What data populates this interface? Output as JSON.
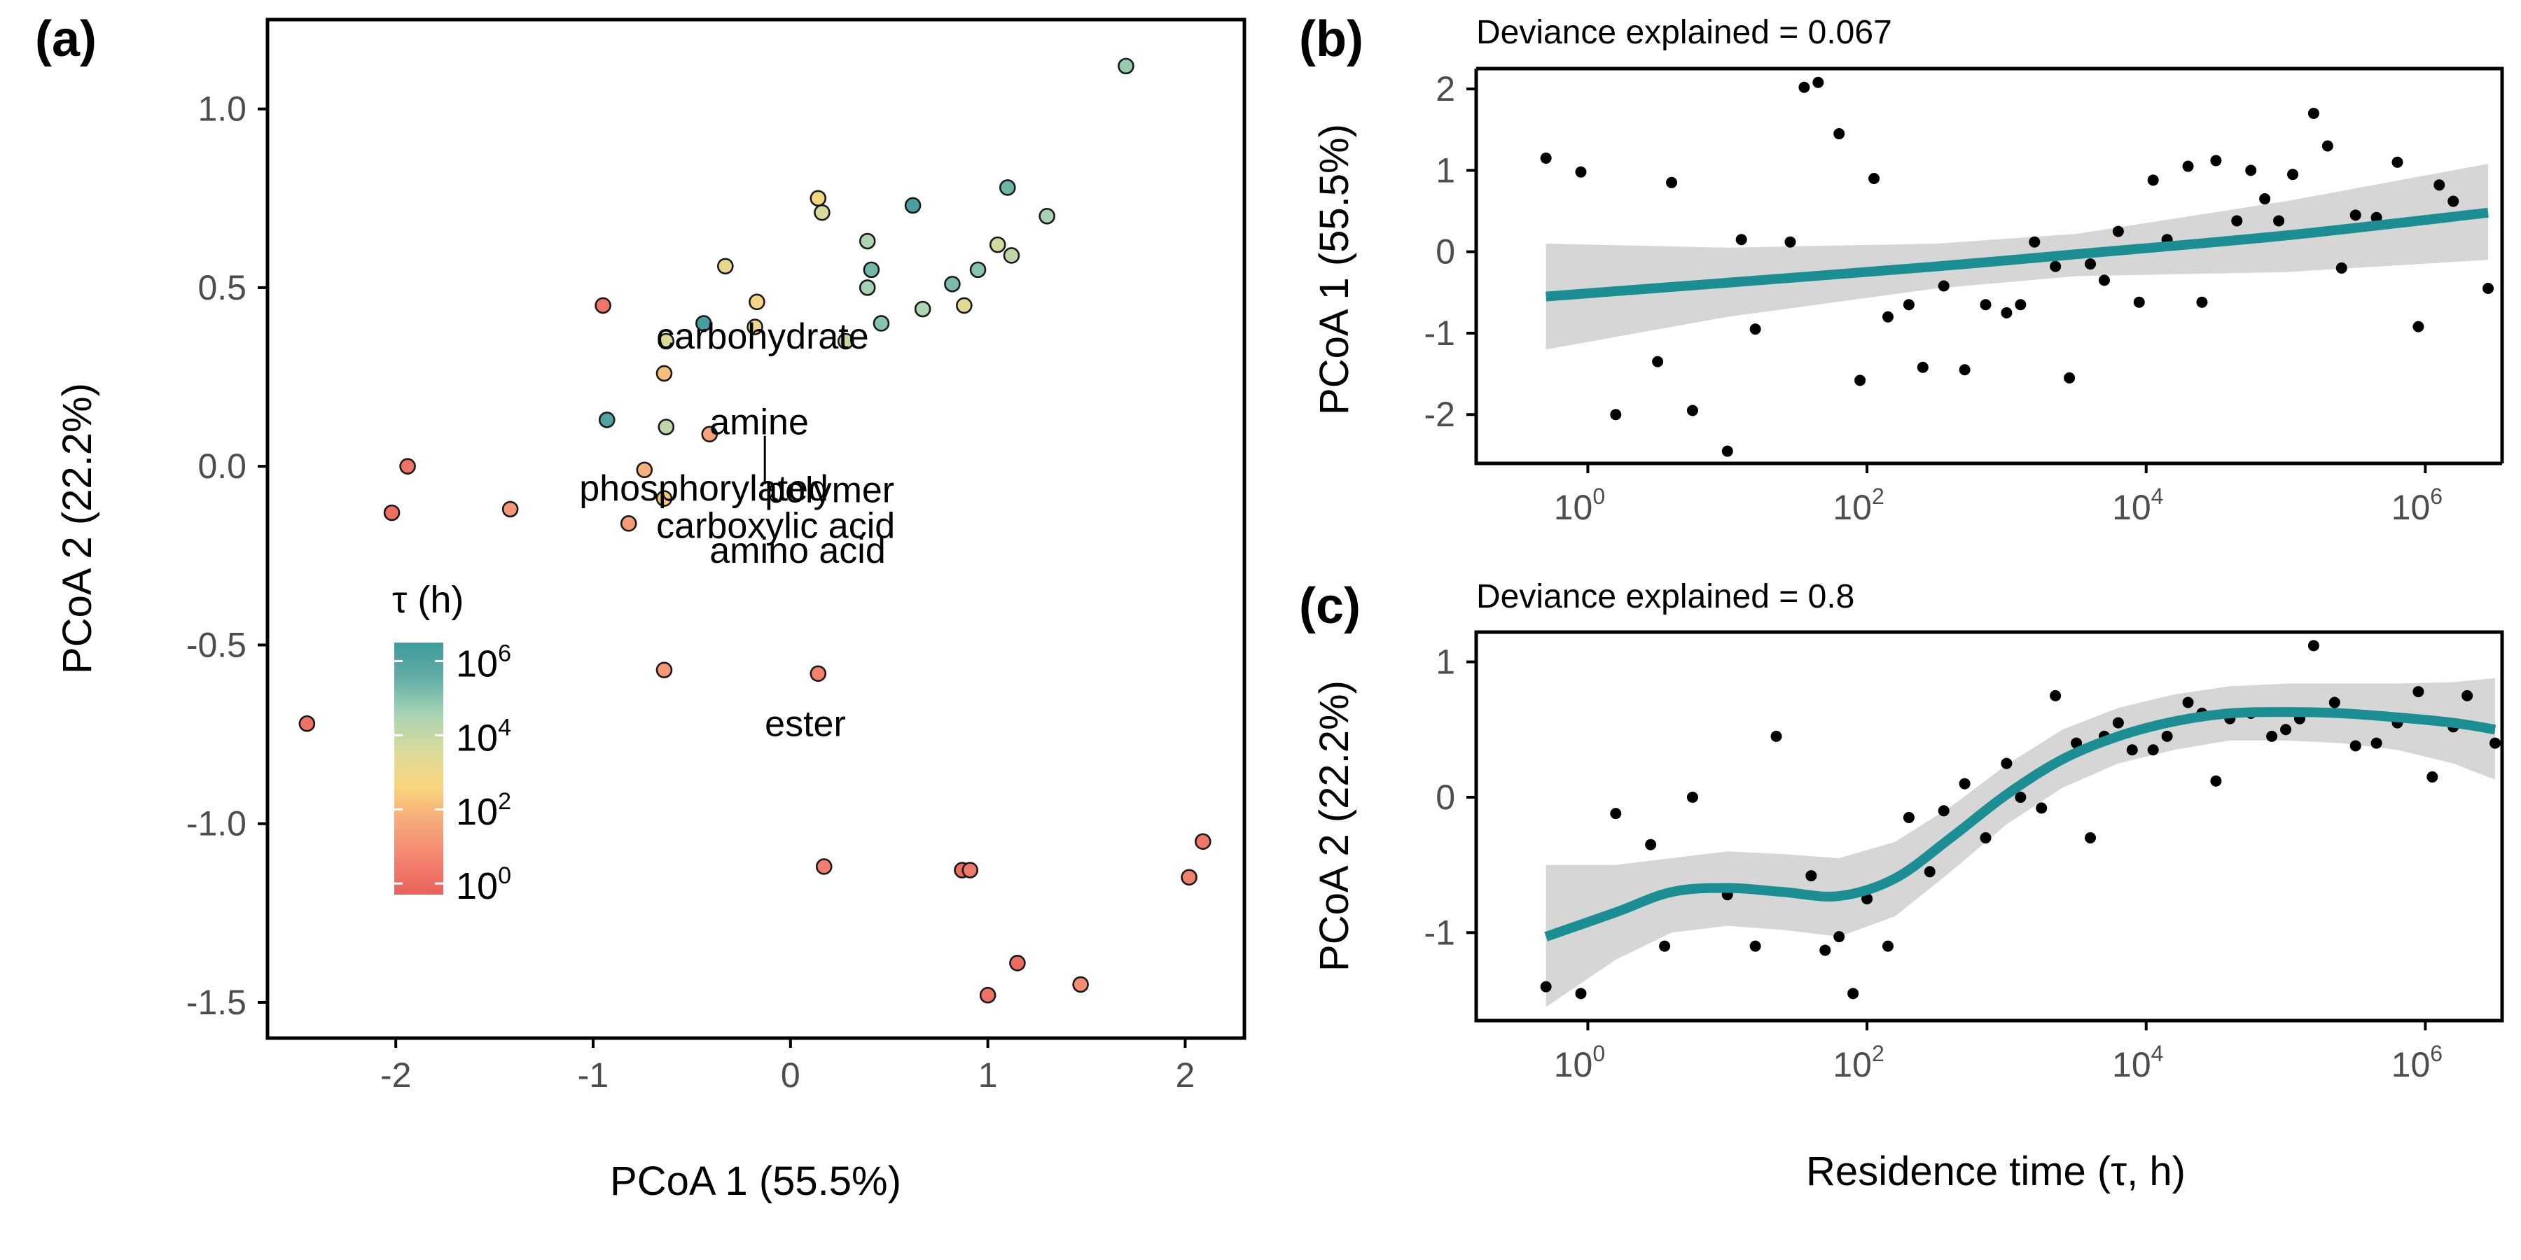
{
  "chart_data": [
    {
      "panel": "(a)",
      "type": "scatter",
      "xlabel": "PCoA 1 (55.5%)",
      "ylabel": "PCoA 2 (22.2%)",
      "xlim": [
        -2.65,
        2.3
      ],
      "ylim": [
        -1.6,
        1.25
      ],
      "xticks": [
        -2,
        -1,
        0,
        1,
        2
      ],
      "xtick_labels": [
        "-2",
        "-1",
        "0",
        "1",
        "2"
      ],
      "yticks": [
        -1.5,
        -1.0,
        -0.5,
        0.0,
        0.5,
        1.0
      ],
      "ytick_labels": [
        "-1.5",
        "-1.0",
        "-0.5",
        "0.0",
        "0.5",
        "1.0"
      ],
      "color_scale": {
        "title": "τ (h)",
        "log10_range": [
          -0.3,
          6.5
        ],
        "stops": [
          "#E8615C",
          "#F3836F",
          "#F6A97B",
          "#F9D57E",
          "#DADB9A",
          "#A7D4B4",
          "#63AEA6",
          "#3E9A9C"
        ],
        "ticks": [
          {
            "base": "10",
            "exp": "0",
            "log10": 0
          },
          {
            "base": "10",
            "exp": "2",
            "log10": 2
          },
          {
            "base": "10",
            "exp": "4",
            "log10": 4
          },
          {
            "base": "10",
            "exp": "6",
            "log10": 6
          }
        ]
      },
      "points": [
        {
          "x": 1.7,
          "y": 1.12,
          "log_tau": 4.8
        },
        {
          "x": 1.1,
          "y": 0.78,
          "log_tau": 5.4
        },
        {
          "x": 1.3,
          "y": 0.7,
          "log_tau": 4.6
        },
        {
          "x": 0.62,
          "y": 0.73,
          "log_tau": 6.2
        },
        {
          "x": 0.14,
          "y": 0.75,
          "log_tau": 2.8
        },
        {
          "x": 0.16,
          "y": 0.71,
          "log_tau": 3.6
        },
        {
          "x": 0.39,
          "y": 0.63,
          "log_tau": 4.4
        },
        {
          "x": 1.05,
          "y": 0.62,
          "log_tau": 3.8
        },
        {
          "x": 1.12,
          "y": 0.59,
          "log_tau": 4.1
        },
        {
          "x": 0.41,
          "y": 0.55,
          "log_tau": 5.3
        },
        {
          "x": 0.95,
          "y": 0.55,
          "log_tau": 5.0
        },
        {
          "x": -0.33,
          "y": 0.56,
          "log_tau": 3.2
        },
        {
          "x": 0.82,
          "y": 0.51,
          "log_tau": 5.2
        },
        {
          "x": 0.39,
          "y": 0.5,
          "log_tau": 4.6
        },
        {
          "x": 0.67,
          "y": 0.44,
          "log_tau": 4.4
        },
        {
          "x": 0.88,
          "y": 0.45,
          "log_tau": 3.4
        },
        {
          "x": -0.17,
          "y": 0.46,
          "log_tau": 2.8
        },
        {
          "x": -0.95,
          "y": 0.45,
          "log_tau": 0.3
        },
        {
          "x": -0.44,
          "y": 0.4,
          "log_tau": 6.3
        },
        {
          "x": -0.18,
          "y": 0.39,
          "log_tau": 3.1
        },
        {
          "x": 0.46,
          "y": 0.4,
          "log_tau": 5.0
        },
        {
          "x": -0.63,
          "y": 0.35,
          "log_tau": 3.5
        },
        {
          "x": 0.28,
          "y": 0.35,
          "log_tau": 4.0
        },
        {
          "x": -0.64,
          "y": 0.26,
          "log_tau": 2.1
        },
        {
          "x": -0.93,
          "y": 0.13,
          "log_tau": 6.0
        },
        {
          "x": -0.63,
          "y": 0.11,
          "log_tau": 4.1
        },
        {
          "x": -0.41,
          "y": 0.09,
          "log_tau": 1.5
        },
        {
          "x": -1.94,
          "y": 0.0,
          "log_tau": 0.2
        },
        {
          "x": -0.74,
          "y": -0.01,
          "log_tau": 1.8
        },
        {
          "x": -2.02,
          "y": -0.13,
          "log_tau": 0.1
        },
        {
          "x": -1.42,
          "y": -0.12,
          "log_tau": 1.2
        },
        {
          "x": -0.64,
          "y": -0.09,
          "log_tau": 2.3
        },
        {
          "x": -0.82,
          "y": -0.16,
          "log_tau": 1.3
        },
        {
          "x": -0.64,
          "y": -0.57,
          "log_tau": 1.2
        },
        {
          "x": 0.14,
          "y": -0.58,
          "log_tau": 0.6
        },
        {
          "x": -2.45,
          "y": -0.72,
          "log_tau": 0.2
        },
        {
          "x": 2.09,
          "y": -1.05,
          "log_tau": 0.3
        },
        {
          "x": 0.17,
          "y": -1.12,
          "log_tau": 0.5
        },
        {
          "x": 0.87,
          "y": -1.13,
          "log_tau": 0.1
        },
        {
          "x": 0.91,
          "y": -1.13,
          "log_tau": 0.4
        },
        {
          "x": 2.02,
          "y": -1.15,
          "log_tau": 0.6
        },
        {
          "x": 1.15,
          "y": -1.39,
          "log_tau": 0.0
        },
        {
          "x": 1.47,
          "y": -1.45,
          "log_tau": 0.9
        },
        {
          "x": 1.0,
          "y": -1.48,
          "log_tau": 0.2
        }
      ],
      "annotations": [
        {
          "text": "carbohydrate",
          "x": -0.68,
          "y": 0.365,
          "anchor": "start"
        },
        {
          "text": "amine",
          "x": -0.41,
          "y": 0.125,
          "anchor": "start"
        },
        {
          "text": "phosphorylated",
          "x": -1.07,
          "y": -0.06,
          "anchor": "start"
        },
        {
          "text": "polymer",
          "x": -0.13,
          "y": -0.065,
          "anchor": "start"
        },
        {
          "text": "carboxylic acid",
          "x": -0.68,
          "y": -0.165,
          "anchor": "start"
        },
        {
          "text": "amino acid",
          "x": -0.41,
          "y": -0.235,
          "anchor": "start"
        },
        {
          "text": "ester",
          "x": -0.13,
          "y": -0.72,
          "anchor": "start"
        }
      ],
      "segments": [
        {
          "x1": -0.13,
          "y1": 0.085,
          "x2": -0.13,
          "y2": -0.05
        }
      ]
    },
    {
      "panel": "(b)",
      "type": "scatter",
      "subtitle": "Deviance explained = 0.067",
      "ylabel": "PCoA 1 (55.5%)",
      "x_scale": "log10",
      "xlim_log10": [
        -0.8,
        6.55
      ],
      "ylim": [
        -2.6,
        2.25
      ],
      "xticks": [
        {
          "base": "10",
          "exp": "0",
          "log10": 0
        },
        {
          "base": "10",
          "exp": "2",
          "log10": 2
        },
        {
          "base": "10",
          "exp": "4",
          "log10": 4
        },
        {
          "base": "10",
          "exp": "6",
          "log10": 6
        }
      ],
      "yticks": [
        -2,
        -1,
        0,
        1,
        2
      ],
      "ytick_labels": [
        "-2",
        "-1",
        "0",
        "1",
        "2"
      ],
      "points": [
        {
          "x": -0.3,
          "y": 1.15
        },
        {
          "x": -0.05,
          "y": 0.98
        },
        {
          "x": 0.2,
          "y": -2.0
        },
        {
          "x": 0.5,
          "y": -1.35
        },
        {
          "x": 0.6,
          "y": 0.85
        },
        {
          "x": 0.75,
          "y": -1.95
        },
        {
          "x": 1.0,
          "y": -2.45
        },
        {
          "x": 1.1,
          "y": 0.15
        },
        {
          "x": 1.2,
          "y": -0.95
        },
        {
          "x": 1.45,
          "y": 0.12
        },
        {
          "x": 1.55,
          "y": 2.02
        },
        {
          "x": 1.65,
          "y": 2.08
        },
        {
          "x": 1.8,
          "y": 1.45
        },
        {
          "x": 1.95,
          "y": -1.58
        },
        {
          "x": 2.05,
          "y": 0.9
        },
        {
          "x": 2.15,
          "y": -0.8
        },
        {
          "x": 2.3,
          "y": -0.65
        },
        {
          "x": 2.4,
          "y": -1.42
        },
        {
          "x": 2.55,
          "y": -0.42
        },
        {
          "x": 2.7,
          "y": -1.45
        },
        {
          "x": 2.85,
          "y": -0.65
        },
        {
          "x": 3.0,
          "y": -0.75
        },
        {
          "x": 3.1,
          "y": -0.65
        },
        {
          "x": 3.2,
          "y": 0.12
        },
        {
          "x": 3.35,
          "y": -0.18
        },
        {
          "x": 3.45,
          "y": -1.55
        },
        {
          "x": 3.6,
          "y": -0.15
        },
        {
          "x": 3.7,
          "y": -0.35
        },
        {
          "x": 3.8,
          "y": 0.25
        },
        {
          "x": 3.95,
          "y": -0.62
        },
        {
          "x": 4.05,
          "y": 0.88
        },
        {
          "x": 4.15,
          "y": 0.15
        },
        {
          "x": 4.3,
          "y": 1.05
        },
        {
          "x": 4.4,
          "y": -0.62
        },
        {
          "x": 4.5,
          "y": 1.12
        },
        {
          "x": 4.65,
          "y": 0.38
        },
        {
          "x": 4.75,
          "y": 1.0
        },
        {
          "x": 4.85,
          "y": 0.65
        },
        {
          "x": 4.95,
          "y": 0.38
        },
        {
          "x": 5.05,
          "y": 0.95
        },
        {
          "x": 5.2,
          "y": 1.7
        },
        {
          "x": 5.3,
          "y": 1.3
        },
        {
          "x": 5.4,
          "y": -0.2
        },
        {
          "x": 5.5,
          "y": 0.45
        },
        {
          "x": 5.65,
          "y": 0.42
        },
        {
          "x": 5.8,
          "y": 1.1
        },
        {
          "x": 5.95,
          "y": -0.92
        },
        {
          "x": 6.1,
          "y": 0.82
        },
        {
          "x": 6.2,
          "y": 0.62
        },
        {
          "x": 6.45,
          "y": -0.45
        }
      ],
      "fit": [
        {
          "x": -0.3,
          "y": -0.55,
          "lo": -1.2,
          "hi": 0.1
        },
        {
          "x": 1.0,
          "y": -0.38,
          "lo": -0.8,
          "hi": 0.05
        },
        {
          "x": 2.5,
          "y": -0.18,
          "lo": -0.45,
          "hi": 0.1
        },
        {
          "x": 3.5,
          "y": -0.03,
          "lo": -0.3,
          "hi": 0.22
        },
        {
          "x": 5.0,
          "y": 0.2,
          "lo": -0.25,
          "hi": 0.62
        },
        {
          "x": 6.45,
          "y": 0.48,
          "lo": -0.1,
          "hi": 1.08
        }
      ]
    },
    {
      "panel": "(c)",
      "type": "scatter",
      "subtitle": "Deviance explained = 0.8",
      "ylabel": "PCoA 2 (22.2%)",
      "xlabel": "Residence time (τ, h)",
      "x_scale": "log10",
      "xlim_log10": [
        -0.8,
        6.55
      ],
      "ylim": [
        -1.65,
        1.22
      ],
      "xticks": [
        {
          "base": "10",
          "exp": "0",
          "log10": 0
        },
        {
          "base": "10",
          "exp": "2",
          "log10": 2
        },
        {
          "base": "10",
          "exp": "4",
          "log10": 4
        },
        {
          "base": "10",
          "exp": "6",
          "log10": 6
        }
      ],
      "yticks": [
        -1,
        0,
        1
      ],
      "ytick_labels": [
        "-1",
        "0",
        "1"
      ],
      "points": [
        {
          "x": -0.3,
          "y": -1.4
        },
        {
          "x": -0.05,
          "y": -1.45
        },
        {
          "x": 0.2,
          "y": -0.12
        },
        {
          "x": 0.45,
          "y": -0.35
        },
        {
          "x": 0.55,
          "y": -1.1
        },
        {
          "x": 0.75,
          "y": 0.0
        },
        {
          "x": 1.0,
          "y": -0.72
        },
        {
          "x": 1.2,
          "y": -1.1
        },
        {
          "x": 1.35,
          "y": 0.45
        },
        {
          "x": 1.6,
          "y": -0.58
        },
        {
          "x": 1.7,
          "y": -1.13
        },
        {
          "x": 1.8,
          "y": -1.03
        },
        {
          "x": 1.9,
          "y": -1.45
        },
        {
          "x": 2.0,
          "y": -0.75
        },
        {
          "x": 2.15,
          "y": -1.1
        },
        {
          "x": 2.3,
          "y": -0.15
        },
        {
          "x": 2.45,
          "y": -0.55
        },
        {
          "x": 2.55,
          "y": -0.1
        },
        {
          "x": 2.7,
          "y": 0.1
        },
        {
          "x": 2.85,
          "y": -0.3
        },
        {
          "x": 3.0,
          "y": 0.25
        },
        {
          "x": 3.1,
          "y": 0.0
        },
        {
          "x": 3.25,
          "y": -0.08
        },
        {
          "x": 3.35,
          "y": 0.75
        },
        {
          "x": 3.5,
          "y": 0.4
        },
        {
          "x": 3.6,
          "y": -0.3
        },
        {
          "x": 3.7,
          "y": 0.45
        },
        {
          "x": 3.8,
          "y": 0.55
        },
        {
          "x": 3.9,
          "y": 0.35
        },
        {
          "x": 4.05,
          "y": 0.35
        },
        {
          "x": 4.15,
          "y": 0.45
        },
        {
          "x": 4.3,
          "y": 0.7
        },
        {
          "x": 4.4,
          "y": 0.62
        },
        {
          "x": 4.5,
          "y": 0.12
        },
        {
          "x": 4.6,
          "y": 0.58
        },
        {
          "x": 4.75,
          "y": 0.62
        },
        {
          "x": 4.9,
          "y": 0.45
        },
        {
          "x": 5.0,
          "y": 0.5
        },
        {
          "x": 5.1,
          "y": 0.58
        },
        {
          "x": 5.2,
          "y": 1.12
        },
        {
          "x": 5.35,
          "y": 0.7
        },
        {
          "x": 5.5,
          "y": 0.38
        },
        {
          "x": 5.65,
          "y": 0.4
        },
        {
          "x": 5.8,
          "y": 0.55
        },
        {
          "x": 5.95,
          "y": 0.78
        },
        {
          "x": 6.05,
          "y": 0.15
        },
        {
          "x": 6.2,
          "y": 0.52
        },
        {
          "x": 6.3,
          "y": 0.75
        },
        {
          "x": 6.5,
          "y": 0.4
        }
      ],
      "fit": [
        {
          "x": -0.3,
          "y": -1.03,
          "lo": -1.55,
          "hi": -0.5
        },
        {
          "x": 0.2,
          "y": -0.85,
          "lo": -1.2,
          "hi": -0.5
        },
        {
          "x": 0.6,
          "y": -0.7,
          "lo": -1.0,
          "hi": -0.45
        },
        {
          "x": 1.0,
          "y": -0.67,
          "lo": -0.95,
          "hi": -0.4
        },
        {
          "x": 1.4,
          "y": -0.7,
          "lo": -0.98,
          "hi": -0.42
        },
        {
          "x": 1.8,
          "y": -0.73,
          "lo": -1.03,
          "hi": -0.45
        },
        {
          "x": 2.2,
          "y": -0.6,
          "lo": -0.88,
          "hi": -0.33
        },
        {
          "x": 2.6,
          "y": -0.3,
          "lo": -0.55,
          "hi": -0.07
        },
        {
          "x": 3.0,
          "y": 0.02,
          "lo": -0.2,
          "hi": 0.24
        },
        {
          "x": 3.4,
          "y": 0.28,
          "lo": 0.07,
          "hi": 0.5
        },
        {
          "x": 3.8,
          "y": 0.45,
          "lo": 0.25,
          "hi": 0.66
        },
        {
          "x": 4.2,
          "y": 0.56,
          "lo": 0.35,
          "hi": 0.76
        },
        {
          "x": 4.6,
          "y": 0.62,
          "lo": 0.42,
          "hi": 0.82
        },
        {
          "x": 5.0,
          "y": 0.63,
          "lo": 0.42,
          "hi": 0.84
        },
        {
          "x": 5.4,
          "y": 0.62,
          "lo": 0.4,
          "hi": 0.84
        },
        {
          "x": 5.8,
          "y": 0.59,
          "lo": 0.35,
          "hi": 0.84
        },
        {
          "x": 6.2,
          "y": 0.55,
          "lo": 0.25,
          "hi": 0.85
        },
        {
          "x": 6.5,
          "y": 0.5,
          "lo": 0.13,
          "hi": 0.88
        }
      ]
    }
  ],
  "colors": {
    "fit_line": "#1B8E94",
    "ribbon": "#D6D6D6",
    "point_dark": "#000000",
    "axis": "#000000",
    "tick_text": "#4d4d4d"
  }
}
